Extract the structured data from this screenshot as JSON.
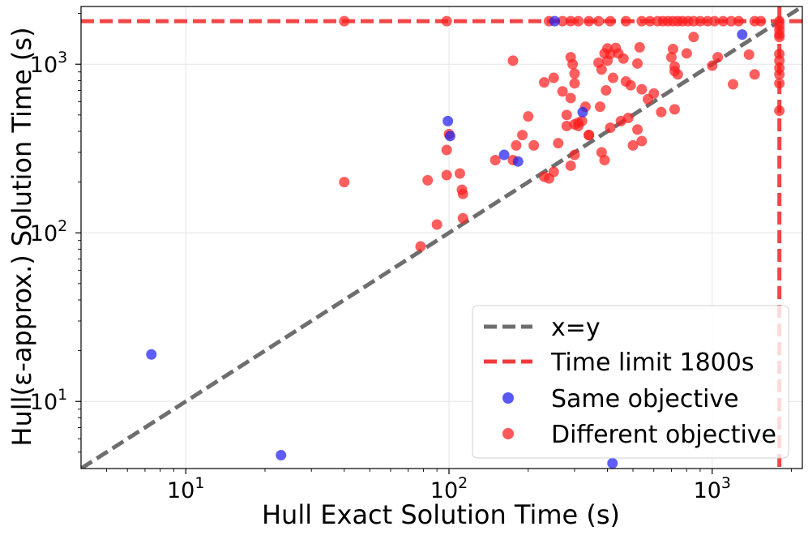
{
  "chart_data": {
    "type": "scatter",
    "title": "",
    "xlabel": "Hull Exact Solution Time (s)",
    "ylabel": "Hull(ε-approx.) Solution Time (s)",
    "xscale": "log",
    "yscale": "log",
    "xlim": [
      4,
      2200
    ],
    "ylim": [
      4,
      2200
    ],
    "grid": true,
    "x_ticks": [
      {
        "value": 10,
        "base": "10",
        "exp": "1"
      },
      {
        "value": 100,
        "base": "10",
        "exp": "2"
      },
      {
        "value": 1000,
        "base": "10",
        "exp": "3"
      }
    ],
    "y_ticks": [
      {
        "value": 10,
        "base": "10",
        "exp": "1"
      },
      {
        "value": 100,
        "base": "10",
        "exp": "2"
      },
      {
        "value": 1000,
        "base": "10",
        "exp": "3"
      }
    ],
    "reference_lines": [
      {
        "name": "x=y",
        "kind": "diagonal",
        "color": "#6e6e6e"
      },
      {
        "name": "Time limit 1800s",
        "kind": "limit",
        "value": 1800,
        "color": "#f03c3c"
      }
    ],
    "legend": {
      "position": "lower-right",
      "entries": [
        {
          "label": "x=y",
          "style": "dashed-line",
          "color": "#6e6e6e"
        },
        {
          "label": "Time limit 1800s",
          "style": "dashed-line",
          "color": "#f03c3c"
        },
        {
          "label": "Same objective",
          "style": "marker",
          "color": "#2020f0"
        },
        {
          "label": "Different objective",
          "style": "marker",
          "color": "#ff2020"
        }
      ]
    },
    "series": [
      {
        "name": "Different objective",
        "color": "#ff2020",
        "points": [
          [
            40,
            1800
          ],
          [
            98,
            1800
          ],
          [
            240,
            1800
          ],
          [
            270,
            1800
          ],
          [
            290,
            1800
          ],
          [
            310,
            1800
          ],
          [
            340,
            1800
          ],
          [
            370,
            1800
          ],
          [
            410,
            1800
          ],
          [
            470,
            1800
          ],
          [
            540,
            1800
          ],
          [
            580,
            1800
          ],
          [
            620,
            1800
          ],
          [
            650,
            1800
          ],
          [
            680,
            1800
          ],
          [
            710,
            1800
          ],
          [
            740,
            1800
          ],
          [
            770,
            1800
          ],
          [
            810,
            1800
          ],
          [
            850,
            1800
          ],
          [
            900,
            1800
          ],
          [
            960,
            1800
          ],
          [
            1020,
            1800
          ],
          [
            1100,
            1800
          ],
          [
            1180,
            1800
          ],
          [
            1260,
            1800
          ],
          [
            1450,
            1800
          ],
          [
            1530,
            1800
          ],
          [
            1800,
            1800
          ],
          [
            1800,
            1700
          ],
          [
            1800,
            1600
          ],
          [
            1800,
            1500
          ],
          [
            1800,
            1450
          ],
          [
            1800,
            1150
          ],
          [
            1800,
            1050
          ],
          [
            1800,
            950
          ],
          [
            1800,
            870
          ],
          [
            1800,
            770
          ],
          [
            1800,
            530
          ],
          [
            175,
            1050
          ],
          [
            230,
            780
          ],
          [
            250,
            830
          ],
          [
            270,
            690
          ],
          [
            290,
            1100
          ],
          [
            295,
            1000
          ],
          [
            300,
            880
          ],
          [
            300,
            770
          ],
          [
            290,
            630
          ],
          [
            310,
            450
          ],
          [
            300,
            440
          ],
          [
            330,
            560
          ],
          [
            340,
            380
          ],
          [
            370,
            1020
          ],
          [
            375,
            560
          ],
          [
            380,
            930
          ],
          [
            390,
            1160
          ],
          [
            400,
            1240
          ],
          [
            395,
            700
          ],
          [
            400,
            1050
          ],
          [
            410,
            1150
          ],
          [
            420,
            830
          ],
          [
            430,
            1250
          ],
          [
            440,
            1160
          ],
          [
            460,
            1080
          ],
          [
            470,
            790
          ],
          [
            490,
            750
          ],
          [
            520,
            1010
          ],
          [
            540,
            710
          ],
          [
            530,
            1260
          ],
          [
            570,
            620
          ],
          [
            600,
            670
          ],
          [
            640,
            520
          ],
          [
            720,
            540
          ],
          [
            700,
            1100
          ],
          [
            710,
            1230
          ],
          [
            720,
            970
          ],
          [
            720,
            910
          ],
          [
            740,
            870
          ],
          [
            800,
            1160
          ],
          [
            850,
            1450
          ],
          [
            1000,
            980
          ],
          [
            1050,
            1100
          ],
          [
            1200,
            760
          ],
          [
            1380,
            1140
          ],
          [
            1450,
            870
          ],
          [
            40,
            200
          ],
          [
            78,
            83
          ],
          [
            83,
            205
          ],
          [
            90,
            112
          ],
          [
            98,
            220
          ],
          [
            100,
            385
          ],
          [
            98,
            310
          ],
          [
            110,
            225
          ],
          [
            112,
            180
          ],
          [
            113,
            170
          ],
          [
            113,
            122
          ],
          [
            150,
            270
          ],
          [
            175,
            270
          ],
          [
            180,
            330
          ],
          [
            190,
            380
          ],
          [
            200,
            490
          ],
          [
            210,
            330
          ],
          [
            230,
            215
          ],
          [
            240,
            210
          ],
          [
            250,
            230
          ],
          [
            260,
            340
          ],
          [
            280,
            430
          ],
          [
            290,
            250
          ],
          [
            300,
            290
          ],
          [
            310,
            430
          ],
          [
            320,
            460
          ],
          [
            340,
            380
          ],
          [
            380,
            300
          ],
          [
            390,
            270
          ],
          [
            410,
            420
          ],
          [
            450,
            460
          ],
          [
            480,
            480
          ],
          [
            500,
            330
          ],
          [
            540,
            350
          ],
          [
            520,
            410
          ],
          [
            280,
            500
          ]
        ]
      },
      {
        "name": "Same objective",
        "color": "#2020f0",
        "points": [
          [
            7.4,
            19
          ],
          [
            23,
            4.8
          ],
          [
            99,
            460
          ],
          [
            101,
            375
          ],
          [
            162,
            290
          ],
          [
            183,
            265
          ],
          [
            252,
            1800
          ],
          [
            322,
            520
          ],
          [
            418,
            4.3
          ],
          [
            1300,
            1500
          ]
        ]
      }
    ]
  }
}
